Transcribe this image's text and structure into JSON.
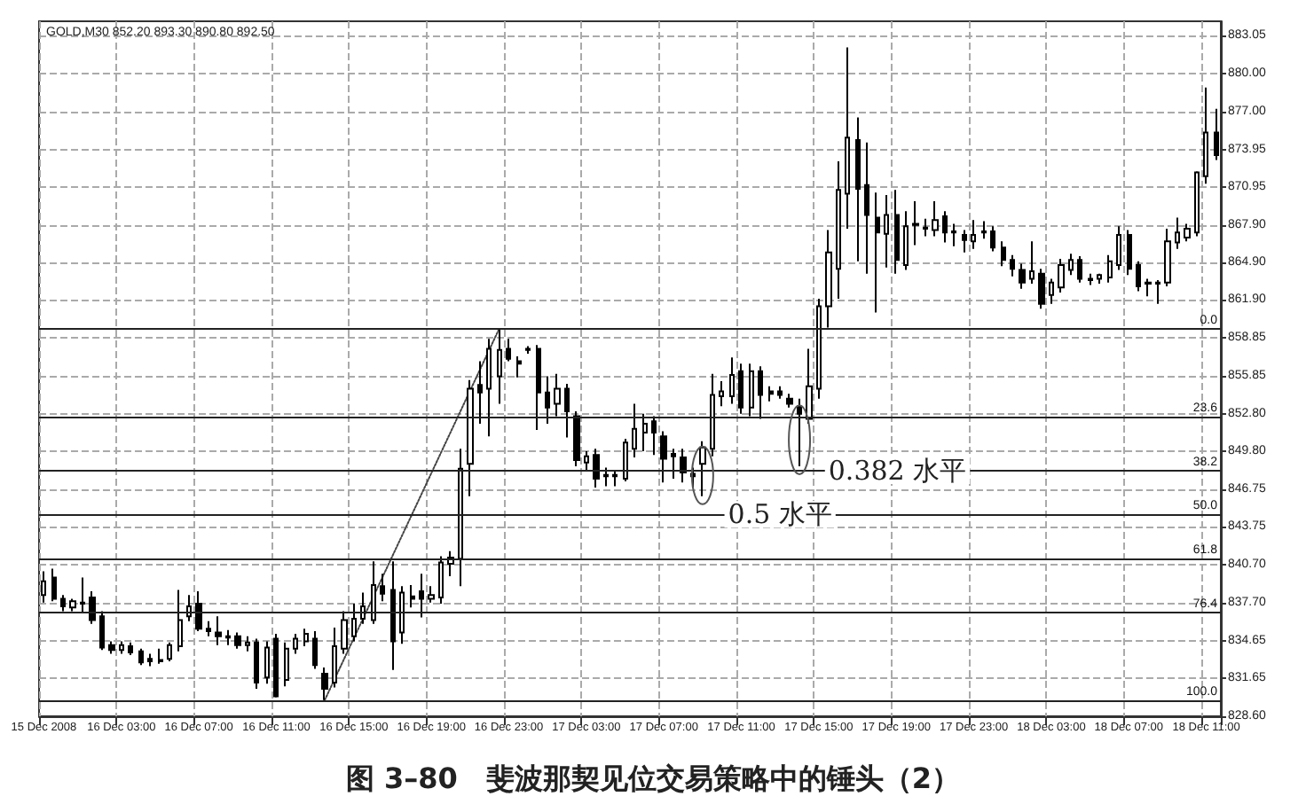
{
  "chart_data": {
    "type": "candlestick",
    "title": "图 3–80　斐波那契见位交易策略中的锤头（2）",
    "annotations": [
      "GOLD,M30 852.20 893.30 890.80 892.50",
      {
        "text": "0.382 水平",
        "y": 848.25
      },
      {
        "text": "0.5 水平",
        "y": 844.75
      },
      {
        "text": "0.0",
        "y": 859.6
      },
      {
        "text": "23.6",
        "y": 852.6
      },
      {
        "text": "38.2",
        "y": 848.25
      },
      {
        "text": "50.0",
        "y": 844.75
      },
      {
        "text": "61.8",
        "y": 841.25
      },
      {
        "text": "76.4",
        "y": 836.9
      },
      {
        "text": "100.0",
        "y": 829.9
      }
    ],
    "categories": [
      "15 Dec 2008",
      null,
      null,
      null,
      null,
      null,
      null,
      null,
      "16 Dec 03:00",
      null,
      null,
      null,
      null,
      null,
      null,
      null,
      "16 Dec 07:00",
      null,
      null,
      null,
      null,
      null,
      null,
      null,
      "16 Dec 11:00",
      null,
      null,
      null,
      null,
      null,
      null,
      null,
      "16 Dec 15:00",
      null,
      null,
      null,
      null,
      null,
      null,
      null,
      "16 Dec 19:00",
      null,
      null,
      null,
      null,
      null,
      null,
      null,
      "16 Dec 23:00",
      null,
      null,
      null,
      null,
      null,
      null,
      null,
      "17 Dec 03:00",
      null,
      null,
      null,
      null,
      null,
      null,
      null,
      "17 Dec 07:00",
      null,
      null,
      null,
      null,
      null,
      null,
      null,
      "17 Dec 11:00",
      null,
      null,
      null,
      null,
      null,
      null,
      null,
      "17 Dec 15:00",
      null,
      null,
      null,
      null,
      null,
      null,
      null,
      "17 Dec 19:00",
      null,
      null,
      null,
      null,
      null,
      null,
      null,
      "17 Dec 23:00",
      null,
      null,
      null,
      null,
      null,
      null,
      null,
      "18 Dec 03:00",
      null,
      null,
      null,
      null,
      null,
      null,
      null,
      "18 Dec 07:00",
      null,
      null,
      null,
      null,
      null,
      null,
      null,
      "18 Dec 11:00",
      null
    ],
    "series": [
      {
        "color": "#000000",
        "ohlc": [
          [
            838.3,
            840.2,
            837.7,
            839.4
          ],
          [
            839.7,
            840.4,
            837.8,
            838.0
          ],
          [
            838.0,
            838.3,
            837.0,
            837.4
          ],
          [
            837.3,
            838.0,
            837.0,
            837.8
          ],
          [
            837.6,
            839.7,
            836.9,
            837.7
          ],
          [
            838.1,
            838.6,
            836.0,
            836.3
          ],
          [
            836.6,
            837.0,
            833.9,
            834.1
          ],
          [
            834.3,
            834.6,
            833.6,
            833.9
          ],
          [
            833.9,
            834.6,
            833.6,
            834.3
          ],
          [
            834.2,
            834.5,
            833.5,
            833.7
          ],
          [
            833.8,
            834.0,
            832.7,
            832.9
          ],
          [
            833.2,
            833.6,
            832.6,
            833.0
          ],
          [
            833.0,
            834.0,
            832.8,
            833.1
          ],
          [
            833.2,
            834.5,
            833.0,
            834.3
          ],
          [
            834.2,
            838.7,
            833.8,
            836.3
          ],
          [
            836.6,
            838.3,
            836.2,
            837.4
          ],
          [
            837.6,
            838.6,
            835.4,
            835.6
          ],
          [
            835.6,
            836.2,
            835.0,
            835.4
          ],
          [
            835.3,
            836.6,
            834.3,
            835.0
          ],
          [
            835.0,
            835.5,
            834.3,
            834.9
          ],
          [
            835.0,
            835.3,
            834.0,
            834.3
          ],
          [
            834.3,
            835.0,
            833.8,
            834.5
          ],
          [
            834.5,
            834.8,
            830.8,
            831.3
          ],
          [
            831.7,
            834.6,
            831.2,
            834.1
          ],
          [
            834.8,
            835.2,
            830.1,
            830.2
          ],
          [
            831.5,
            834.5,
            831.0,
            834.0
          ],
          [
            834.0,
            835.2,
            833.6,
            834.8
          ],
          [
            834.6,
            835.6,
            834.2,
            835.2
          ],
          [
            834.8,
            835.4,
            832.4,
            832.7
          ],
          [
            832.0,
            832.5,
            829.9,
            830.8
          ],
          [
            831.3,
            835.7,
            830.9,
            834.2
          ],
          [
            834.0,
            837.0,
            833.6,
            836.3
          ],
          [
            835.0,
            837.6,
            834.6,
            836.4
          ],
          [
            836.4,
            838.5,
            836.0,
            837.4
          ],
          [
            836.3,
            841.0,
            836.0,
            839.1
          ],
          [
            839.0,
            840.0,
            837.8,
            838.4
          ],
          [
            838.7,
            841.0,
            832.3,
            834.6
          ],
          [
            835.3,
            839.0,
            834.4,
            838.5
          ],
          [
            838.2,
            839.1,
            837.3,
            838.0
          ],
          [
            838.6,
            840.0,
            836.5,
            838.0
          ],
          [
            838.0,
            839.0,
            837.7,
            838.3
          ],
          [
            838.1,
            841.4,
            837.6,
            840.9
          ],
          [
            840.8,
            841.8,
            839.8,
            841.3
          ],
          [
            841.2,
            850.0,
            839.0,
            848.4
          ],
          [
            848.8,
            855.5,
            846.2,
            854.8
          ],
          [
            855.1,
            857.0,
            852.0,
            854.5
          ],
          [
            854.8,
            858.8,
            851.0,
            858.0
          ],
          [
            855.8,
            859.6,
            853.6,
            857.9
          ],
          [
            858.0,
            858.8,
            857.0,
            857.2
          ],
          [
            857.0,
            857.4,
            855.7,
            856.8
          ],
          [
            858.0,
            858.2,
            857.6,
            857.9
          ],
          [
            858.0,
            858.3,
            851.5,
            854.5
          ],
          [
            854.5,
            855.8,
            852.0,
            853.3
          ],
          [
            853.6,
            856.0,
            852.6,
            854.8
          ],
          [
            854.8,
            855.2,
            850.9,
            853.0
          ],
          [
            852.6,
            853.0,
            848.6,
            849.1
          ],
          [
            848.9,
            849.8,
            848.2,
            849.4
          ],
          [
            849.5,
            850.0,
            846.9,
            847.6
          ],
          [
            847.9,
            848.5,
            847.0,
            847.8
          ],
          [
            847.8,
            848.3,
            847.0,
            847.9
          ],
          [
            847.6,
            850.8,
            847.4,
            850.5
          ],
          [
            850.0,
            853.6,
            849.3,
            851.6
          ],
          [
            851.3,
            852.8,
            849.8,
            852.0
          ],
          [
            852.2,
            852.6,
            849.5,
            851.3
          ],
          [
            851.0,
            851.4,
            847.3,
            849.2
          ],
          [
            849.6,
            850.0,
            847.6,
            849.4
          ],
          [
            849.3,
            850.0,
            847.3,
            848.1
          ],
          [
            848.0,
            848.5,
            846.9,
            847.8
          ],
          [
            848.8,
            850.6,
            846.2,
            850.1
          ],
          [
            850.0,
            856.0,
            849.4,
            854.3
          ],
          [
            854.2,
            855.4,
            853.4,
            854.6
          ],
          [
            854.2,
            857.3,
            853.6,
            855.9
          ],
          [
            856.2,
            856.8,
            852.8,
            853.3
          ],
          [
            853.3,
            856.8,
            852.6,
            856.2
          ],
          [
            856.2,
            856.6,
            852.4,
            854.3
          ],
          [
            854.6,
            855.0,
            853.8,
            854.4
          ],
          [
            854.6,
            855.0,
            854.0,
            854.3
          ],
          [
            854.0,
            854.4,
            853.3,
            853.6
          ],
          [
            853.4,
            854.0,
            848.6,
            852.8
          ],
          [
            852.4,
            858.0,
            852.0,
            855.0
          ],
          [
            854.8,
            862.0,
            854.0,
            861.4
          ],
          [
            861.4,
            867.5,
            859.7,
            865.7
          ],
          [
            864.4,
            873.0,
            862.0,
            870.7
          ],
          [
            870.4,
            882.1,
            867.6,
            874.9
          ],
          [
            874.7,
            876.5,
            865.0,
            870.8
          ],
          [
            871.1,
            874.5,
            864.0,
            868.7
          ],
          [
            868.5,
            870.5,
            860.9,
            867.3
          ],
          [
            867.2,
            870.3,
            864.5,
            868.7
          ],
          [
            868.7,
            870.7,
            864.0,
            865.1
          ],
          [
            864.7,
            869.0,
            864.3,
            867.8
          ],
          [
            867.9,
            869.8,
            866.3,
            868.0
          ],
          [
            867.7,
            868.4,
            867.0,
            867.6
          ],
          [
            867.5,
            869.8,
            867.0,
            868.3
          ],
          [
            868.6,
            869.0,
            866.5,
            867.3
          ],
          [
            867.4,
            868.0,
            866.2,
            867.3
          ],
          [
            867.1,
            867.5,
            865.7,
            866.7
          ],
          [
            866.6,
            868.3,
            866.0,
            867.1
          ],
          [
            867.3,
            868.2,
            866.8,
            867.4
          ],
          [
            867.4,
            867.8,
            865.8,
            866.1
          ],
          [
            866.1,
            866.6,
            864.6,
            865.1
          ],
          [
            865.1,
            865.5,
            863.8,
            864.4
          ],
          [
            864.3,
            864.8,
            862.8,
            863.3
          ],
          [
            863.6,
            866.6,
            863.2,
            864.2
          ],
          [
            864.0,
            864.4,
            861.2,
            861.6
          ],
          [
            862.3,
            863.6,
            861.6,
            863.3
          ],
          [
            862.9,
            865.2,
            862.5,
            864.7
          ],
          [
            864.3,
            865.6,
            863.9,
            865.1
          ],
          [
            865.1,
            865.4,
            863.3,
            863.6
          ],
          [
            863.6,
            864.0,
            863.1,
            863.5
          ],
          [
            863.6,
            864.0,
            863.2,
            863.9
          ],
          [
            863.7,
            865.5,
            863.3,
            865.0
          ],
          [
            864.7,
            867.8,
            864.3,
            867.1
          ],
          [
            867.1,
            867.5,
            863.9,
            864.4
          ],
          [
            864.7,
            865.0,
            862.6,
            863.0
          ],
          [
            863.3,
            863.6,
            862.2,
            863.2
          ],
          [
            863.2,
            863.5,
            861.6,
            863.3
          ],
          [
            863.3,
            867.6,
            863.0,
            866.6
          ],
          [
            866.5,
            868.5,
            866.0,
            867.3
          ],
          [
            866.9,
            868.0,
            866.6,
            867.6
          ],
          [
            867.3,
            872.2,
            867.0,
            872.1
          ],
          [
            871.8,
            878.9,
            871.2,
            875.3
          ],
          [
            875.3,
            877.2,
            873.1,
            873.5
          ]
        ]
      },
      {
        "type": "line",
        "color": "#444444",
        "line_style": "dotted",
        "marker": "none",
        "values": [
          null,
          null,
          null,
          null,
          null,
          null,
          null,
          null,
          null,
          null,
          null,
          null,
          null,
          null,
          null,
          null,
          null,
          null,
          null,
          null,
          null,
          null,
          null,
          null,
          null,
          null,
          null,
          null,
          null,
          829.9,
          null,
          null,
          null,
          null,
          null,
          null,
          null,
          null,
          null,
          null,
          null,
          null,
          null,
          null,
          null,
          null,
          null,
          859.6,
          null,
          null,
          null,
          null,
          null,
          null,
          null,
          null,
          null,
          null,
          null,
          null,
          null,
          null,
          null,
          null,
          null,
          null,
          null,
          null,
          null,
          null,
          null,
          null,
          null,
          null,
          null,
          null,
          null,
          null,
          null,
          null,
          null,
          null,
          null,
          null,
          null,
          null,
          null,
          null,
          null,
          null,
          null,
          null,
          null,
          null,
          null,
          null,
          null,
          null,
          null,
          null,
          null,
          null,
          null,
          null,
          null,
          null,
          null,
          null,
          null,
          null,
          null,
          null,
          null,
          null,
          null,
          null,
          null,
          null,
          null,
          null,
          null,
          null
        ]
      }
    ],
    "ylim": [
      828.6,
      884.2
    ],
    "yticks": [
      {
        "value": 828.6,
        "label": "828.60"
      },
      {
        "value": 831.65,
        "label": "831.65"
      },
      {
        "value": 834.65,
        "label": "834.65"
      },
      {
        "value": 837.7,
        "label": "837.70"
      },
      {
        "value": 840.7,
        "label": "840.70"
      },
      {
        "value": 843.75,
        "label": "843.75"
      },
      {
        "value": 846.75,
        "label": "846.75"
      },
      {
        "value": 849.8,
        "label": "849.80"
      },
      {
        "value": 852.8,
        "label": "852.80"
      },
      {
        "value": 855.85,
        "label": "855.85"
      },
      {
        "value": 858.85,
        "label": "858.85"
      },
      {
        "value": 861.9,
        "label": "861.90"
      },
      {
        "value": 864.9,
        "label": "864.90"
      },
      {
        "value": 867.9,
        "label": "867.90"
      },
      {
        "value": 870.95,
        "label": "870.95"
      },
      {
        "value": 873.95,
        "label": "873.95"
      },
      {
        "value": 877.0,
        "label": "877.00"
      },
      {
        "value": 880.0,
        "label": "880.00"
      },
      {
        "value": 883.05,
        "label": "883.05"
      }
    ],
    "ref_lines": [
      {
        "axis": "y",
        "value": 859.6,
        "color": "#222222"
      },
      {
        "axis": "y",
        "value": 852.6,
        "color": "#222222"
      },
      {
        "axis": "y",
        "value": 848.25,
        "color": "#222222"
      },
      {
        "axis": "y",
        "value": 844.75,
        "color": "#222222"
      },
      {
        "axis": "y",
        "value": 841.25,
        "color": "#222222"
      },
      {
        "axis": "y",
        "value": 836.9,
        "color": "#222222"
      },
      {
        "axis": "y",
        "value": 829.9,
        "color": "#222222"
      }
    ],
    "grid": true
  }
}
